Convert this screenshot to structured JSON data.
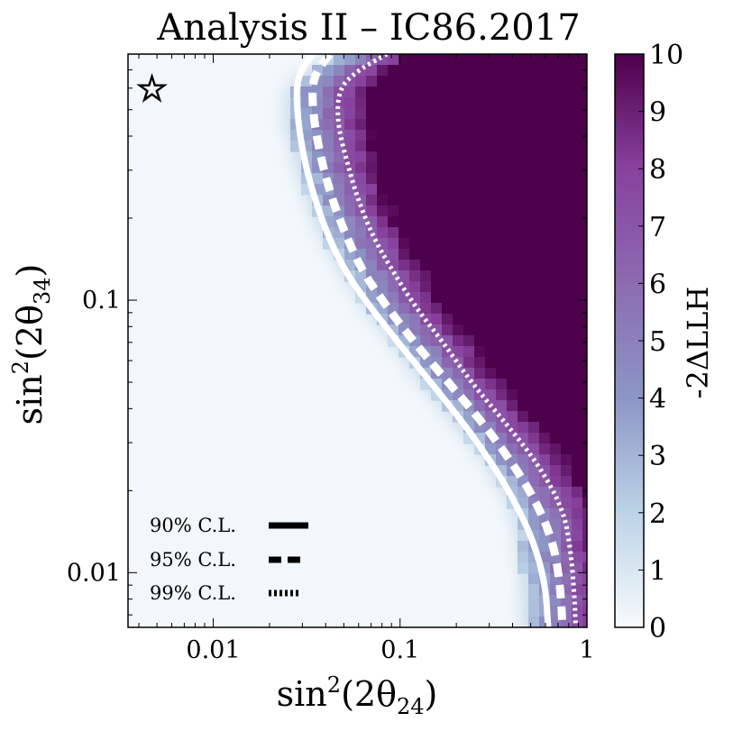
{
  "chart_data": {
    "type": "heatmap",
    "title": "Analysis II – IC86.2017",
    "xlabel": {
      "base": "sin",
      "sup": "2",
      "mid": "(2θ",
      "sub": "24",
      "end": ")"
    },
    "ylabel": {
      "base": "sin",
      "sup": "2",
      "mid": "(2θ",
      "sub": "34",
      "end": ")"
    },
    "x_scale": "log",
    "y_scale": "log",
    "xlim": [
      0.0035,
      1
    ],
    "ylim": [
      0.0063,
      0.8
    ],
    "x_ticks": [
      {
        "value": 0.01,
        "label": "0.01"
      },
      {
        "value": 0.1,
        "label": "0.1"
      },
      {
        "value": 1,
        "label": "1"
      }
    ],
    "y_ticks": [
      {
        "value": 0.01,
        "label": "0.01"
      },
      {
        "value": 0.1,
        "label": "0.1"
      }
    ],
    "colorbar": {
      "label": "-2ΔLLH",
      "range": [
        0,
        10
      ],
      "ticks": [
        "0",
        "1",
        "2",
        "3",
        "4",
        "5",
        "6",
        "7",
        "8",
        "9",
        "10"
      ],
      "colors": [
        "#f7fbfd",
        "#bcd3e6",
        "#8c96c6",
        "#8c6bb1",
        "#88419d",
        "#4d004b"
      ]
    },
    "best_fit_marker": {
      "symbol": "☆",
      "x": 0.0047,
      "y": 0.6
    },
    "contours": [
      {
        "name": "90% C.L.",
        "style": "solid",
        "points": [
          [
            0.034,
            0.8
          ],
          [
            0.028,
            0.66
          ],
          [
            0.028,
            0.5
          ],
          [
            0.03,
            0.35
          ],
          [
            0.034,
            0.25
          ],
          [
            0.04,
            0.18
          ],
          [
            0.05,
            0.13
          ],
          [
            0.065,
            0.1
          ],
          [
            0.09,
            0.075
          ],
          [
            0.13,
            0.055
          ],
          [
            0.19,
            0.04
          ],
          [
            0.28,
            0.028
          ],
          [
            0.4,
            0.019
          ],
          [
            0.52,
            0.013
          ],
          [
            0.6,
            0.009
          ],
          [
            0.62,
            0.0063
          ]
        ]
      },
      {
        "name": "95% C.L.",
        "style": "dashed",
        "points": [
          [
            0.042,
            0.8
          ],
          [
            0.034,
            0.66
          ],
          [
            0.034,
            0.5
          ],
          [
            0.037,
            0.35
          ],
          [
            0.042,
            0.25
          ],
          [
            0.05,
            0.18
          ],
          [
            0.062,
            0.13
          ],
          [
            0.08,
            0.1
          ],
          [
            0.11,
            0.075
          ],
          [
            0.16,
            0.055
          ],
          [
            0.24,
            0.04
          ],
          [
            0.36,
            0.028
          ],
          [
            0.52,
            0.019
          ],
          [
            0.66,
            0.013
          ],
          [
            0.72,
            0.009
          ],
          [
            0.74,
            0.0063
          ]
        ]
      },
      {
        "name": "99% C.L.",
        "style": "dotted",
        "points": [
          [
            0.085,
            0.8
          ],
          [
            0.06,
            0.7
          ],
          [
            0.047,
            0.6
          ],
          [
            0.046,
            0.45
          ],
          [
            0.052,
            0.32
          ],
          [
            0.06,
            0.23
          ],
          [
            0.072,
            0.17
          ],
          [
            0.09,
            0.13
          ],
          [
            0.12,
            0.095
          ],
          [
            0.17,
            0.07
          ],
          [
            0.24,
            0.05
          ],
          [
            0.36,
            0.036
          ],
          [
            0.55,
            0.025
          ],
          [
            0.75,
            0.017
          ],
          [
            0.82,
            0.012
          ],
          [
            0.86,
            0.008
          ],
          [
            0.87,
            0.0063
          ]
        ]
      }
    ],
    "legend": {
      "position": "bottom-left",
      "entries": [
        {
          "label": "90% C.L.",
          "style": "solid"
        },
        {
          "label": "95% C.L.",
          "style": "dashed"
        },
        {
          "label": "99% C.L.",
          "style": "dotted"
        }
      ]
    }
  }
}
